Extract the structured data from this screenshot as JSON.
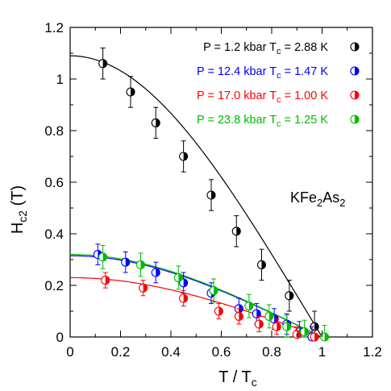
{
  "chart_data": {
    "type": "scatter",
    "xlabel": {
      "main": "T / T",
      "sub": "c"
    },
    "ylabel": {
      "main": "H",
      "sub": "c2",
      "suffix": " (T)"
    },
    "xlim": [
      0,
      1.2
    ],
    "ylim": [
      0,
      1.2
    ],
    "xticks": [
      "0",
      "0.2",
      "0.4",
      "0.6",
      "0.8",
      "1",
      "1.2"
    ],
    "yticks": [
      "0",
      "0.2",
      "0.4",
      "0.6",
      "0.8",
      "1",
      "1.2"
    ],
    "annotation": {
      "parts": [
        "KFe",
        "2",
        "As",
        "2"
      ]
    },
    "legend_position": "top-right",
    "series": [
      {
        "name": "P = 1.2 kbar T",
        "name_sub": "c",
        "name_suffix": " = 2.88 K",
        "color": "#000000",
        "fit_h0": 1.09,
        "x": [
          0.13,
          0.24,
          0.34,
          0.45,
          0.56,
          0.66,
          0.76,
          0.87,
          0.97
        ],
        "y": [
          1.06,
          0.95,
          0.83,
          0.7,
          0.55,
          0.41,
          0.28,
          0.16,
          0.04
        ],
        "err": [
          0.06,
          0.06,
          0.06,
          0.06,
          0.06,
          0.06,
          0.06,
          0.06,
          0.06
        ]
      },
      {
        "name": "P = 12.4 kbar T",
        "name_sub": "c",
        "name_suffix": " = 1.47 K",
        "color": "#0000ff",
        "fit_h0": 0.315,
        "x": [
          0.11,
          0.22,
          0.34,
          0.45,
          0.56,
          0.67,
          0.74,
          0.81,
          0.86,
          0.91,
          0.96
        ],
        "y": [
          0.32,
          0.29,
          0.25,
          0.21,
          0.17,
          0.11,
          0.09,
          0.07,
          0.05,
          0.02,
          0.0
        ],
        "err": [
          0.04,
          0.04,
          0.04,
          0.04,
          0.04,
          0.04,
          0.04,
          0.04,
          0.04,
          0.04,
          0.04
        ]
      },
      {
        "name": "P = 17.0 kbar T",
        "name_sub": "c",
        "name_suffix": " = 1.00 K",
        "color": "#ff0000",
        "fit_h0": 0.23,
        "x": [
          0.14,
          0.29,
          0.45,
          0.59,
          0.67,
          0.75,
          0.82,
          0.9,
          0.97
        ],
        "y": [
          0.22,
          0.19,
          0.15,
          0.1,
          0.08,
          0.05,
          0.04,
          0.01,
          0.0
        ],
        "err": [
          0.03,
          0.03,
          0.03,
          0.03,
          0.03,
          0.03,
          0.03,
          0.03,
          0.03
        ]
      },
      {
        "name": "P = 23.8 kbar T",
        "name_sub": "c",
        "name_suffix": " = 1.25 K",
        "color": "#00bb00",
        "fit_h0": 0.32,
        "x": [
          0.13,
          0.28,
          0.43,
          0.57,
          0.71,
          0.79,
          0.86,
          0.93,
          1.01
        ],
        "y": [
          0.31,
          0.28,
          0.23,
          0.18,
          0.12,
          0.08,
          0.04,
          0.02,
          0.0
        ],
        "err": [
          0.045,
          0.045,
          0.045,
          0.045,
          0.045,
          0.045,
          0.045,
          0.045,
          0.045
        ]
      }
    ]
  }
}
